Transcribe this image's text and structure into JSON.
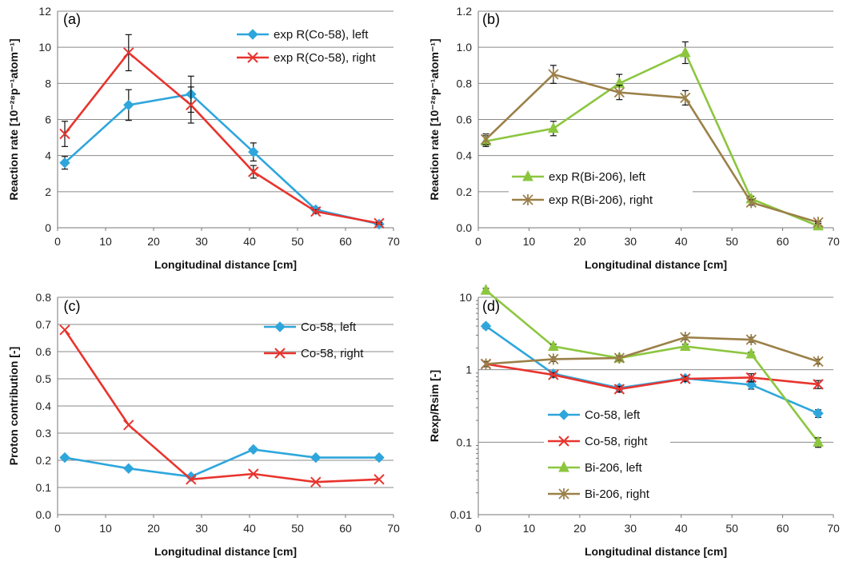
{
  "figure": {
    "panels": [
      "(a)",
      "(b)",
      "(c)",
      "(d)"
    ]
  },
  "chart_data": [
    {
      "panel": "(a)",
      "type": "line",
      "xlabel": "Longitudinal distance [cm]",
      "ylabel": "Reaction rate [10⁻²⁸p⁻¹atom⁻¹]",
      "xlim": [
        0,
        70
      ],
      "xticks": [
        0,
        10,
        20,
        30,
        40,
        50,
        60,
        70
      ],
      "ylim": [
        0,
        12
      ],
      "yticks": [
        0,
        2,
        4,
        6,
        8,
        10,
        12
      ],
      "yscale": "linear",
      "grid": "horizontal",
      "legend": "top-right",
      "series": [
        {
          "name": "exp R(Co-58), left",
          "color": "#2EA6DC",
          "marker": "diamond",
          "x": [
            1.5,
            14.8,
            27.8,
            40.8,
            53.8,
            67
          ],
          "y": [
            3.6,
            6.8,
            7.4,
            4.2,
            1.0,
            0.2
          ],
          "err": [
            0.35,
            0.85,
            1.0,
            0.5,
            0.12,
            0.05
          ]
        },
        {
          "name": "exp R(Co-58), right",
          "color": "#E8342E",
          "marker": "x",
          "x": [
            1.5,
            14.8,
            27.8,
            40.8,
            53.8,
            67
          ],
          "y": [
            5.2,
            9.7,
            6.8,
            3.1,
            0.9,
            0.25
          ],
          "err": [
            0.7,
            1.0,
            1.0,
            0.35,
            0.1,
            0.05
          ]
        }
      ]
    },
    {
      "panel": "(b)",
      "type": "line",
      "xlabel": "Longitudinal distance [cm]",
      "ylabel": "Reaction rate [10⁻²⁸p⁻¹atom⁻¹]",
      "xlim": [
        0,
        70
      ],
      "xticks": [
        0,
        10,
        20,
        30,
        40,
        50,
        60,
        70
      ],
      "ylim": [
        0,
        1.2
      ],
      "yticks": [
        "0.0",
        "0.2",
        "0.4",
        "0.6",
        "0.8",
        "1.0",
        "1.2"
      ],
      "yscale": "linear",
      "grid": "horizontal",
      "legend": "bottom-right",
      "series": [
        {
          "name": "exp R(Bi-206), left",
          "color": "#8CC63F",
          "marker": "triangle",
          "x": [
            1.5,
            14.8,
            27.8,
            40.8,
            53.8,
            67
          ],
          "y": [
            0.48,
            0.55,
            0.8,
            0.97,
            0.16,
            0.01
          ],
          "err": [
            0.03,
            0.04,
            0.05,
            0.06,
            0.015,
            0.005
          ]
        },
        {
          "name": "exp R(Bi-206), right",
          "color": "#9B8048",
          "marker": "asterisk",
          "x": [
            1.5,
            14.8,
            27.8,
            40.8,
            53.8,
            67
          ],
          "y": [
            0.49,
            0.85,
            0.75,
            0.72,
            0.14,
            0.03
          ],
          "err": [
            0.03,
            0.05,
            0.04,
            0.04,
            0.015,
            0.005
          ]
        }
      ]
    },
    {
      "panel": "(c)",
      "type": "line",
      "xlabel": "Longitudinal distance [cm]",
      "ylabel": "Proton contribution [-]",
      "xlim": [
        0,
        70
      ],
      "xticks": [
        0,
        10,
        20,
        30,
        40,
        50,
        60,
        70
      ],
      "ylim": [
        0,
        0.8
      ],
      "yticks": [
        "0.0",
        "0.1",
        "0.2",
        "0.3",
        "0.4",
        "0.5",
        "0.6",
        "0.7",
        "0.8"
      ],
      "yscale": "linear",
      "grid": "horizontal",
      "legend": "top-right",
      "series": [
        {
          "name": "Co-58, left",
          "color": "#2EA6DC",
          "marker": "diamond",
          "x": [
            1.5,
            14.8,
            27.8,
            40.8,
            53.8,
            67
          ],
          "y": [
            0.21,
            0.17,
            0.14,
            0.24,
            0.21,
            0.21
          ]
        },
        {
          "name": "Co-58, right",
          "color": "#E8342E",
          "marker": "x",
          "x": [
            1.5,
            14.8,
            27.8,
            40.8,
            53.8,
            67
          ],
          "y": [
            0.68,
            0.33,
            0.13,
            0.15,
            0.12,
            0.13
          ]
        }
      ]
    },
    {
      "panel": "(d)",
      "type": "line",
      "xlabel": "Longitudinal distance [cm]",
      "ylabel": "Rexp/Rsim [-]",
      "xlim": [
        0,
        70
      ],
      "xticks": [
        0,
        10,
        20,
        30,
        40,
        50,
        60,
        70
      ],
      "ylim": [
        0.01,
        10
      ],
      "yticks": [
        "0.01",
        "0.1",
        "1",
        "10"
      ],
      "yscale": "log",
      "grid": "horizontal",
      "legend": "bottom-left",
      "series": [
        {
          "name": "Co-58, left",
          "color": "#2EA6DC",
          "marker": "diamond",
          "x": [
            1.5,
            14.8,
            27.8,
            40.8,
            53.8,
            67
          ],
          "y": [
            4.0,
            0.88,
            0.56,
            0.76,
            0.62,
            0.25
          ],
          "err": [
            0.3,
            0.06,
            0.05,
            0.06,
            0.08,
            0.03
          ]
        },
        {
          "name": "Co-58, right",
          "color": "#E8342E",
          "marker": "x",
          "x": [
            1.5,
            14.8,
            27.8,
            40.8,
            53.8,
            67
          ],
          "y": [
            1.2,
            0.85,
            0.54,
            0.75,
            0.78,
            0.63
          ],
          "err": [
            0.1,
            0.06,
            0.05,
            0.06,
            0.1,
            0.08
          ]
        },
        {
          "name": "Bi-206, left",
          "color": "#8CC63F",
          "marker": "triangle",
          "x": [
            1.5,
            14.8,
            27.8,
            40.8,
            53.8,
            67
          ],
          "y": [
            12.5,
            2.1,
            1.45,
            2.1,
            1.65,
            0.1
          ],
          "err": [
            0.8,
            0.15,
            0.1,
            0.15,
            0.1,
            0.015
          ]
        },
        {
          "name": "Bi-206, right",
          "color": "#9B8048",
          "marker": "asterisk",
          "x": [
            1.5,
            14.8,
            27.8,
            40.8,
            53.8,
            67
          ],
          "y": [
            1.2,
            1.4,
            1.45,
            2.8,
            2.6,
            1.3
          ],
          "err": [
            0.1,
            0.1,
            0.1,
            0.2,
            0.2,
            0.1
          ]
        }
      ]
    }
  ]
}
